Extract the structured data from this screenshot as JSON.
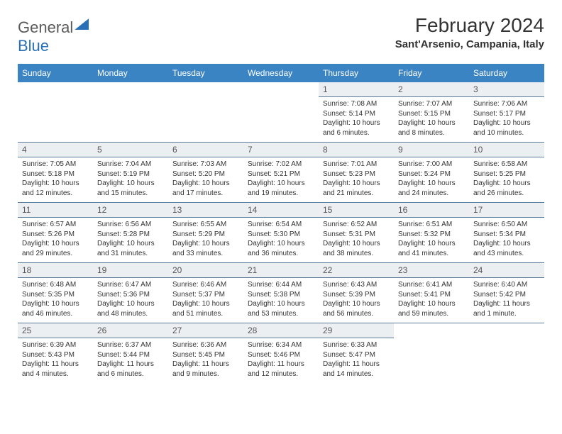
{
  "brand": {
    "name1": "General",
    "name2": "Blue"
  },
  "title": "February 2024",
  "location": "Sant'Arsenio, Campania, Italy",
  "colors": {
    "header_bg": "#3b84c4",
    "header_fg": "#ffffff",
    "daynum_bg": "#eceff1",
    "rule": "#5a7a9a",
    "text": "#333333",
    "brand_blue": "#2970b8"
  },
  "weekdays": [
    "Sunday",
    "Monday",
    "Tuesday",
    "Wednesday",
    "Thursday",
    "Friday",
    "Saturday"
  ],
  "weeks": [
    [
      null,
      null,
      null,
      null,
      {
        "n": "1",
        "sr": "Sunrise: 7:08 AM",
        "ss": "Sunset: 5:14 PM",
        "dl1": "Daylight: 10 hours",
        "dl2": "and 6 minutes."
      },
      {
        "n": "2",
        "sr": "Sunrise: 7:07 AM",
        "ss": "Sunset: 5:15 PM",
        "dl1": "Daylight: 10 hours",
        "dl2": "and 8 minutes."
      },
      {
        "n": "3",
        "sr": "Sunrise: 7:06 AM",
        "ss": "Sunset: 5:17 PM",
        "dl1": "Daylight: 10 hours",
        "dl2": "and 10 minutes."
      }
    ],
    [
      {
        "n": "4",
        "sr": "Sunrise: 7:05 AM",
        "ss": "Sunset: 5:18 PM",
        "dl1": "Daylight: 10 hours",
        "dl2": "and 12 minutes."
      },
      {
        "n": "5",
        "sr": "Sunrise: 7:04 AM",
        "ss": "Sunset: 5:19 PM",
        "dl1": "Daylight: 10 hours",
        "dl2": "and 15 minutes."
      },
      {
        "n": "6",
        "sr": "Sunrise: 7:03 AM",
        "ss": "Sunset: 5:20 PM",
        "dl1": "Daylight: 10 hours",
        "dl2": "and 17 minutes."
      },
      {
        "n": "7",
        "sr": "Sunrise: 7:02 AM",
        "ss": "Sunset: 5:21 PM",
        "dl1": "Daylight: 10 hours",
        "dl2": "and 19 minutes."
      },
      {
        "n": "8",
        "sr": "Sunrise: 7:01 AM",
        "ss": "Sunset: 5:23 PM",
        "dl1": "Daylight: 10 hours",
        "dl2": "and 21 minutes."
      },
      {
        "n": "9",
        "sr": "Sunrise: 7:00 AM",
        "ss": "Sunset: 5:24 PM",
        "dl1": "Daylight: 10 hours",
        "dl2": "and 24 minutes."
      },
      {
        "n": "10",
        "sr": "Sunrise: 6:58 AM",
        "ss": "Sunset: 5:25 PM",
        "dl1": "Daylight: 10 hours",
        "dl2": "and 26 minutes."
      }
    ],
    [
      {
        "n": "11",
        "sr": "Sunrise: 6:57 AM",
        "ss": "Sunset: 5:26 PM",
        "dl1": "Daylight: 10 hours",
        "dl2": "and 29 minutes."
      },
      {
        "n": "12",
        "sr": "Sunrise: 6:56 AM",
        "ss": "Sunset: 5:28 PM",
        "dl1": "Daylight: 10 hours",
        "dl2": "and 31 minutes."
      },
      {
        "n": "13",
        "sr": "Sunrise: 6:55 AM",
        "ss": "Sunset: 5:29 PM",
        "dl1": "Daylight: 10 hours",
        "dl2": "and 33 minutes."
      },
      {
        "n": "14",
        "sr": "Sunrise: 6:54 AM",
        "ss": "Sunset: 5:30 PM",
        "dl1": "Daylight: 10 hours",
        "dl2": "and 36 minutes."
      },
      {
        "n": "15",
        "sr": "Sunrise: 6:52 AM",
        "ss": "Sunset: 5:31 PM",
        "dl1": "Daylight: 10 hours",
        "dl2": "and 38 minutes."
      },
      {
        "n": "16",
        "sr": "Sunrise: 6:51 AM",
        "ss": "Sunset: 5:32 PM",
        "dl1": "Daylight: 10 hours",
        "dl2": "and 41 minutes."
      },
      {
        "n": "17",
        "sr": "Sunrise: 6:50 AM",
        "ss": "Sunset: 5:34 PM",
        "dl1": "Daylight: 10 hours",
        "dl2": "and 43 minutes."
      }
    ],
    [
      {
        "n": "18",
        "sr": "Sunrise: 6:48 AM",
        "ss": "Sunset: 5:35 PM",
        "dl1": "Daylight: 10 hours",
        "dl2": "and 46 minutes."
      },
      {
        "n": "19",
        "sr": "Sunrise: 6:47 AM",
        "ss": "Sunset: 5:36 PM",
        "dl1": "Daylight: 10 hours",
        "dl2": "and 48 minutes."
      },
      {
        "n": "20",
        "sr": "Sunrise: 6:46 AM",
        "ss": "Sunset: 5:37 PM",
        "dl1": "Daylight: 10 hours",
        "dl2": "and 51 minutes."
      },
      {
        "n": "21",
        "sr": "Sunrise: 6:44 AM",
        "ss": "Sunset: 5:38 PM",
        "dl1": "Daylight: 10 hours",
        "dl2": "and 53 minutes."
      },
      {
        "n": "22",
        "sr": "Sunrise: 6:43 AM",
        "ss": "Sunset: 5:39 PM",
        "dl1": "Daylight: 10 hours",
        "dl2": "and 56 minutes."
      },
      {
        "n": "23",
        "sr": "Sunrise: 6:41 AM",
        "ss": "Sunset: 5:41 PM",
        "dl1": "Daylight: 10 hours",
        "dl2": "and 59 minutes."
      },
      {
        "n": "24",
        "sr": "Sunrise: 6:40 AM",
        "ss": "Sunset: 5:42 PM",
        "dl1": "Daylight: 11 hours",
        "dl2": "and 1 minute."
      }
    ],
    [
      {
        "n": "25",
        "sr": "Sunrise: 6:39 AM",
        "ss": "Sunset: 5:43 PM",
        "dl1": "Daylight: 11 hours",
        "dl2": "and 4 minutes."
      },
      {
        "n": "26",
        "sr": "Sunrise: 6:37 AM",
        "ss": "Sunset: 5:44 PM",
        "dl1": "Daylight: 11 hours",
        "dl2": "and 6 minutes."
      },
      {
        "n": "27",
        "sr": "Sunrise: 6:36 AM",
        "ss": "Sunset: 5:45 PM",
        "dl1": "Daylight: 11 hours",
        "dl2": "and 9 minutes."
      },
      {
        "n": "28",
        "sr": "Sunrise: 6:34 AM",
        "ss": "Sunset: 5:46 PM",
        "dl1": "Daylight: 11 hours",
        "dl2": "and 12 minutes."
      },
      {
        "n": "29",
        "sr": "Sunrise: 6:33 AM",
        "ss": "Sunset: 5:47 PM",
        "dl1": "Daylight: 11 hours",
        "dl2": "and 14 minutes."
      },
      null,
      null
    ]
  ]
}
